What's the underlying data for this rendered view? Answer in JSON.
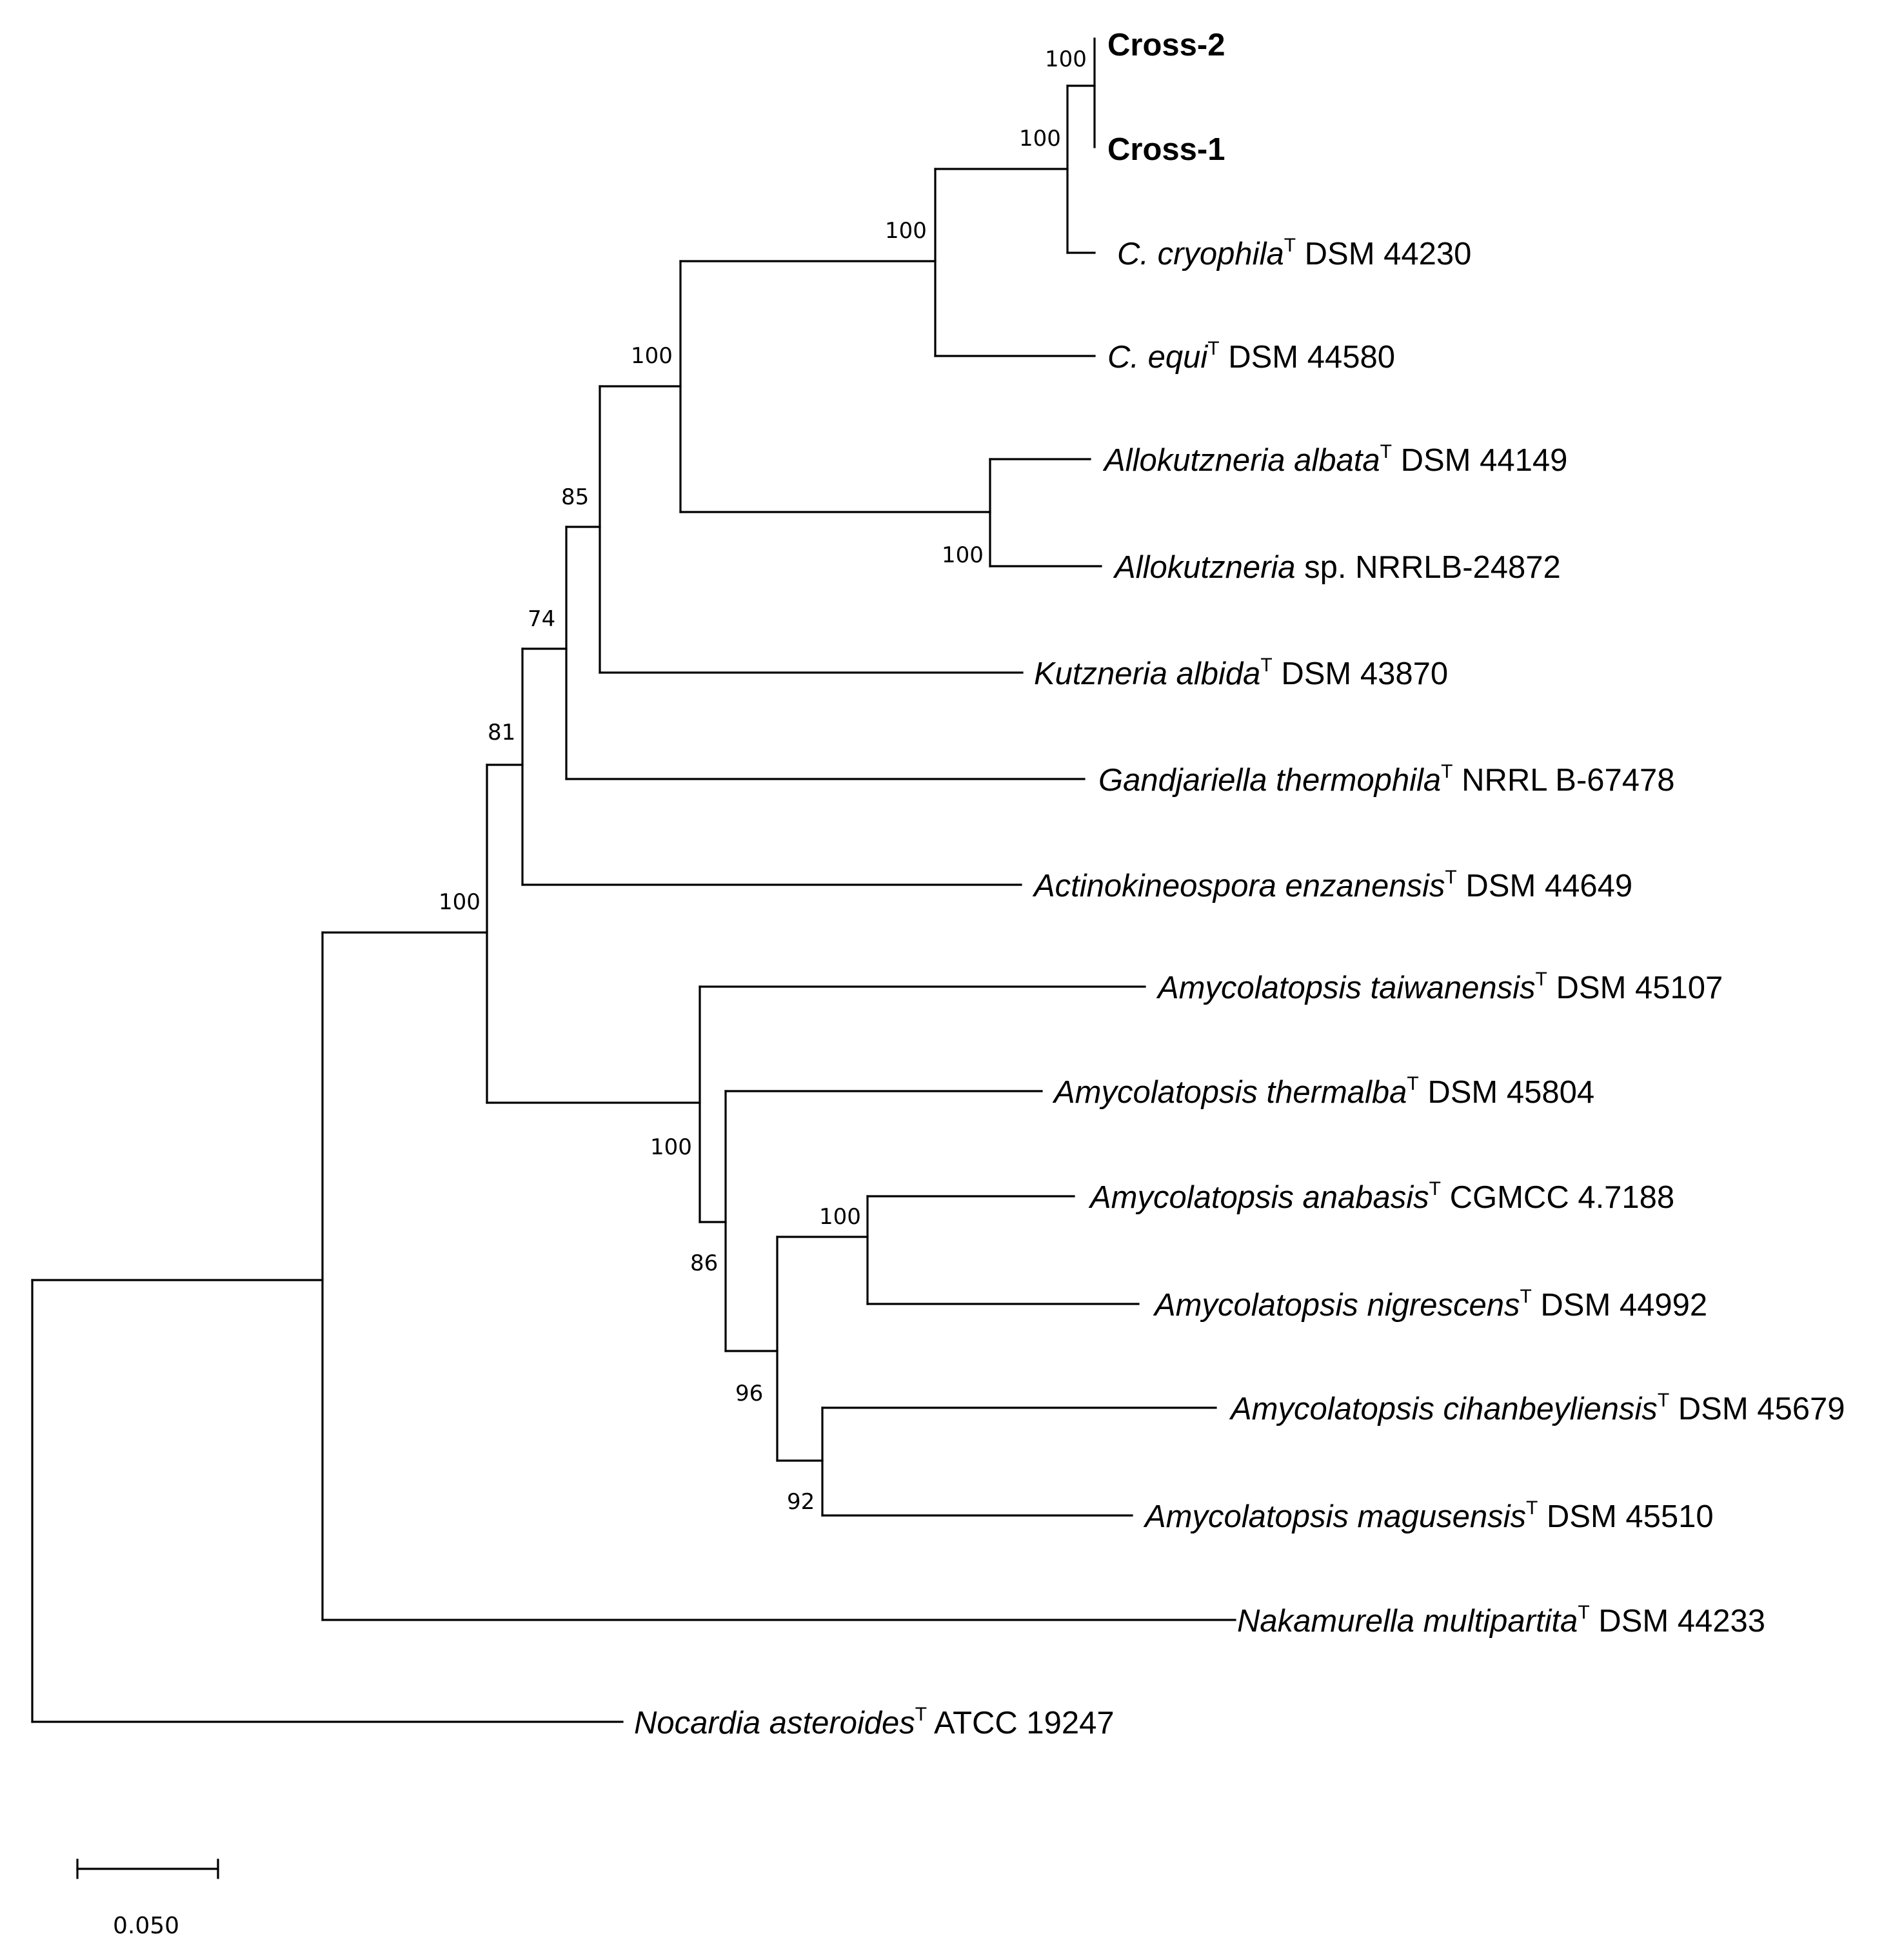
{
  "tree": {
    "leaves": [
      {
        "name": "Cross-2",
        "bold": true
      },
      {
        "name": "Cross-1",
        "bold": true
      },
      {
        "italic": "C. cryophila",
        "sup": "T",
        "strain": "DSM 44230"
      },
      {
        "italic": "C. equi",
        "sup": "T",
        "strain": "DSM 44580"
      },
      {
        "italic": "Allokutzneria albata",
        "sup": "T",
        "strain": "DSM 44149"
      },
      {
        "italic": "Allokutzneria",
        "strain": "sp. NRRLB-24872"
      },
      {
        "italic": "Kutzneria albida",
        "sup": "T",
        "strain": "DSM 43870"
      },
      {
        "italic": "Gandjariella thermophila",
        "sup": "T",
        "strain": "NRRL B-67478"
      },
      {
        "italic": "Actinokineospora enzanensis",
        "sup": "T",
        "strain": "DSM 44649"
      },
      {
        "italic": "Amycolatopsis taiwanensis",
        "sup": "T",
        "strain": "DSM 45107"
      },
      {
        "italic": "Amycolatopsis thermalba",
        "sup": "T",
        "strain": "DSM 45804"
      },
      {
        "italic": "Amycolatopsis anabasis",
        "sup": "T",
        "strain": "CGMCC 4.7188"
      },
      {
        "italic": "Amycolatopsis nigrescens",
        "sup": "T",
        "strain": "DSM 44992"
      },
      {
        "italic": "Amycolatopsis cihanbeyliensis",
        "sup": "T",
        "strain": "DSM 45679"
      },
      {
        "italic": "Amycolatopsis magusensis",
        "sup": "T",
        "strain": "DSM 45510"
      },
      {
        "italic": "Nakamurella multipartita",
        "sup": "T",
        "strain": "DSM 44233"
      },
      {
        "italic": "Nocardia asteroides",
        "sup": "T",
        "strain": "ATCC 19247"
      }
    ],
    "bootstrap": {
      "cross_pair": "100",
      "cross_cryophila": "100",
      "crossotalea_clade": "100",
      "with_allokutzneria": "100",
      "allokutzneria_pair": "100",
      "with_kutzneria": "85",
      "with_gandjariella": "74",
      "with_actinokineospora": "81",
      "ingroup": "100",
      "amycolatopsis_clade": "100",
      "amycolatopsis_inner": "86",
      "anabasis_nigrescens": "100",
      "amycolatopsis_subclade": "96",
      "cihanbeyliensis_magusensis": "92"
    }
  },
  "scale_bar": {
    "value": 0.05,
    "label": "0.050"
  }
}
